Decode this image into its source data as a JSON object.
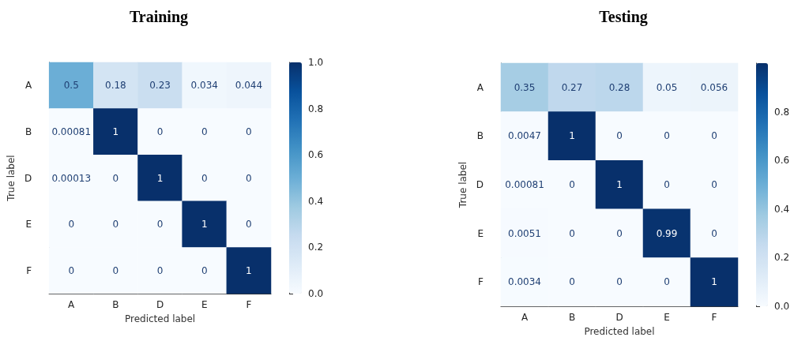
{
  "chart_data": [
    {
      "type": "heatmap",
      "title": "Training",
      "xlabel": "Predicted label",
      "ylabel": "True label",
      "categories": [
        "A",
        "B",
        "D",
        "E",
        "F"
      ],
      "y_categories": [
        "A",
        "B",
        "D",
        "E",
        "F"
      ],
      "cells": [
        [
          0.5,
          0.18,
          0.23,
          0.034,
          0.044
        ],
        [
          0.00081,
          1,
          0,
          0,
          0
        ],
        [
          0.00013,
          0,
          1,
          0,
          0
        ],
        [
          0,
          0,
          0,
          1,
          0
        ],
        [
          0,
          0,
          0,
          0,
          1
        ]
      ],
      "clim": [
        0,
        1
      ],
      "cticks": [
        {
          "value": 0,
          "label": "0.0"
        },
        {
          "value": 0.2,
          "label": "0.2"
        },
        {
          "value": 0.4,
          "label": "0.4"
        },
        {
          "value": 0.6,
          "label": "0.6"
        },
        {
          "value": 0.8,
          "label": "0.8"
        },
        {
          "value": 1,
          "label": "1.0"
        }
      ],
      "data_labels": true
    },
    {
      "type": "heatmap",
      "title": "Testing",
      "xlabel": "Predicted label",
      "ylabel": "True label",
      "categories": [
        "A",
        "B",
        "D",
        "E",
        "F"
      ],
      "y_categories": [
        "A",
        "B",
        "D",
        "E",
        "F"
      ],
      "cells": [
        [
          0.35,
          0.27,
          0.28,
          0.05,
          0.056
        ],
        [
          0.0047,
          1,
          0,
          0,
          0
        ],
        [
          0.00081,
          0,
          1,
          0,
          0
        ],
        [
          0.0051,
          0,
          0,
          0.99,
          0
        ],
        [
          0.0034,
          0,
          0,
          0,
          1
        ]
      ],
      "clim": [
        0,
        1
      ],
      "cticks": [
        {
          "value": 0,
          "label": "0.0"
        },
        {
          "value": 0.2,
          "label": "0.2"
        },
        {
          "value": 0.4,
          "label": "0.4"
        },
        {
          "value": 0.6,
          "label": "0.6"
        },
        {
          "value": 0.8,
          "label": "0.8"
        }
      ],
      "data_labels": true
    }
  ]
}
